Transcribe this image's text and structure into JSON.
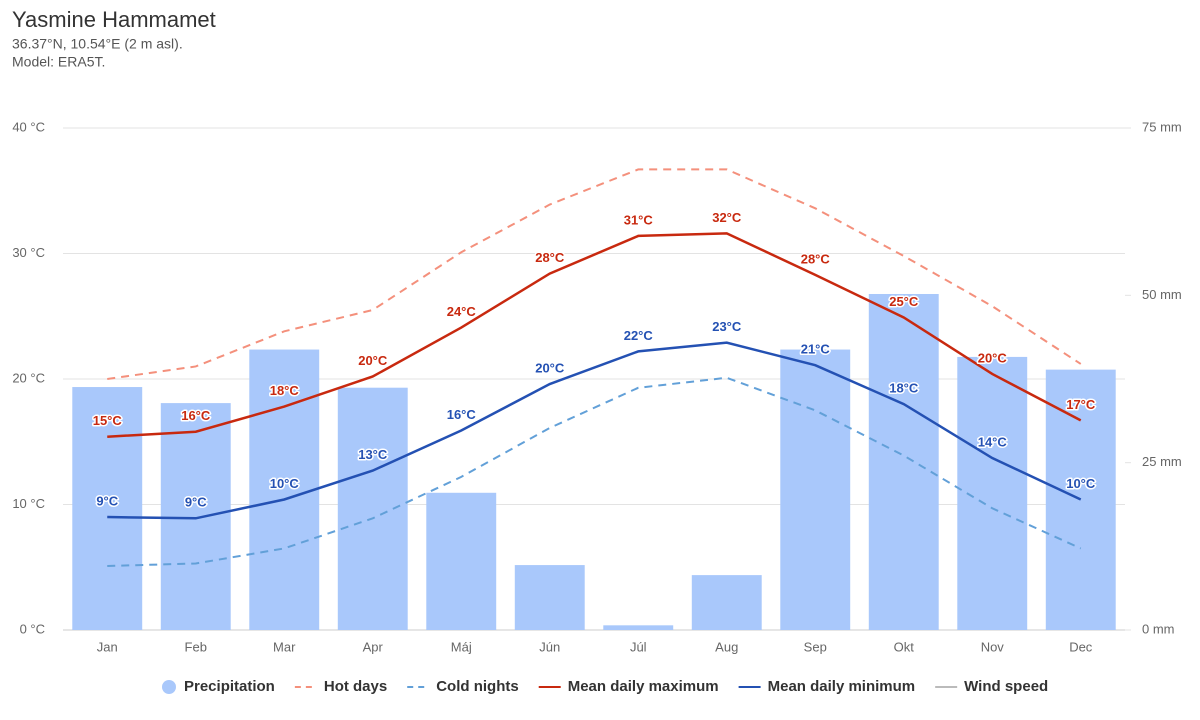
{
  "chart_data": {
    "type": "bar",
    "title": "Yasmine Hammamet",
    "subtitle": "36.37°N, 10.54°E (2 m asl).",
    "model": "Model: ERA5T.",
    "categories": [
      "Jan",
      "Feb",
      "Mar",
      "Apr",
      "Máj",
      "Jún",
      "Júl",
      "Aug",
      "Sep",
      "Okt",
      "Nov",
      "Dec"
    ],
    "ylim": [
      0,
      40
    ],
    "yticks": [
      {
        "value": 0,
        "label": "0 °C"
      },
      {
        "value": 10,
        "label": "10 °C"
      },
      {
        "value": 20,
        "label": "20 °C"
      },
      {
        "value": 30,
        "label": "30 °C"
      },
      {
        "value": 40,
        "label": "40 °C"
      }
    ],
    "y2lim": [
      0,
      75
    ],
    "y2ticks": [
      {
        "value": 0,
        "label": "0 mm"
      },
      {
        "value": 25,
        "label": "25 mm"
      },
      {
        "value": 50,
        "label": "50 mm"
      },
      {
        "value": 75,
        "label": "75 mm"
      }
    ],
    "grid": true,
    "series": [
      {
        "name": "Precipitation",
        "type": "bar",
        "axis": "y2",
        "color": "#a9c8fb",
        "values": [
          36.3,
          33.9,
          41.9,
          36.2,
          20.5,
          9.7,
          0.7,
          8.2,
          41.9,
          50.2,
          40.8,
          38.9
        ]
      },
      {
        "name": "Hot days",
        "type": "line",
        "dash": true,
        "color": "#f4907c",
        "values": [
          20.0,
          21.0,
          23.8,
          25.5,
          30.1,
          33.9,
          36.7,
          36.7,
          33.6,
          29.8,
          25.8,
          21.2
        ]
      },
      {
        "name": "Cold nights",
        "type": "line",
        "dash": true,
        "color": "#62a0d8",
        "values": [
          5.1,
          5.3,
          6.5,
          8.9,
          12.2,
          16.1,
          19.3,
          20.1,
          17.5,
          13.9,
          9.7,
          6.5
        ]
      },
      {
        "name": "Mean daily maximum",
        "type": "line",
        "color": "#c8290f",
        "values": [
          15.4,
          15.8,
          17.8,
          20.2,
          24.1,
          28.4,
          31.4,
          31.6,
          28.3,
          24.9,
          20.4,
          16.7
        ],
        "value_labels": [
          "15°C",
          "16°C",
          "18°C",
          "20°C",
          "24°C",
          "28°C",
          "31°C",
          "32°C",
          "28°C",
          "25°C",
          "20°C",
          "17°C"
        ]
      },
      {
        "name": "Mean daily minimum",
        "type": "line",
        "color": "#2451b3",
        "values": [
          9.0,
          8.9,
          10.4,
          12.7,
          15.9,
          19.6,
          22.2,
          22.9,
          21.1,
          18.0,
          13.7,
          10.4
        ],
        "value_labels": [
          "9°C",
          "9°C",
          "10°C",
          "13°C",
          "16°C",
          "20°C",
          "22°C",
          "23°C",
          "21°C",
          "18°C",
          "14°C",
          "10°C"
        ]
      },
      {
        "name": "Wind speed",
        "type": "line",
        "visible": false,
        "color": "#aaaaaa",
        "values": [
          null,
          null,
          null,
          null,
          null,
          null,
          null,
          null,
          null,
          null,
          null,
          null
        ]
      }
    ]
  }
}
